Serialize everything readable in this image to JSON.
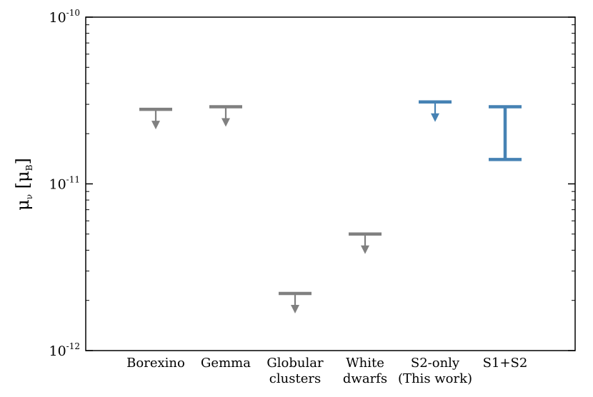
{
  "chart_data": {
    "type": "scatter",
    "title": "",
    "xlabel": "",
    "ylabel": {
      "symbol": "μ",
      "subscript": "ν",
      "unit_open": "[μ",
      "unit_subscript": "B",
      "unit_close": "]"
    },
    "yscale": "log",
    "ylim": [
      1e-12,
      1e-10
    ],
    "yticks": [
      {
        "value": 1e-12,
        "base": "10",
        "exp": "-12"
      },
      {
        "value": 1e-11,
        "base": "10",
        "exp": "-11"
      },
      {
        "value": 1e-10,
        "base": "10",
        "exp": "-10"
      }
    ],
    "grid": false,
    "colors": {
      "previous": "#808080",
      "this_work": "#4682b4"
    },
    "categories": [
      {
        "label_lines": [
          "Borexino"
        ],
        "kind": "upper_limit",
        "value": 2.8e-11,
        "color": "#808080"
      },
      {
        "label_lines": [
          "Gemma"
        ],
        "kind": "upper_limit",
        "value": 2.9e-11,
        "color": "#808080"
      },
      {
        "label_lines": [
          "Globular",
          "clusters"
        ],
        "kind": "upper_limit",
        "value": 2.2e-12,
        "color": "#808080"
      },
      {
        "label_lines": [
          "White",
          "dwarfs"
        ],
        "kind": "upper_limit",
        "value": 5e-12,
        "color": "#808080"
      },
      {
        "label_lines": [
          "S2-only",
          "(This work)"
        ],
        "kind": "upper_limit",
        "value": 3.1e-11,
        "color": "#4682b4"
      },
      {
        "label_lines": [
          "S1+S2"
        ],
        "kind": "interval",
        "low": 1.4e-11,
        "high": 2.9e-11,
        "color": "#4682b4"
      }
    ]
  }
}
